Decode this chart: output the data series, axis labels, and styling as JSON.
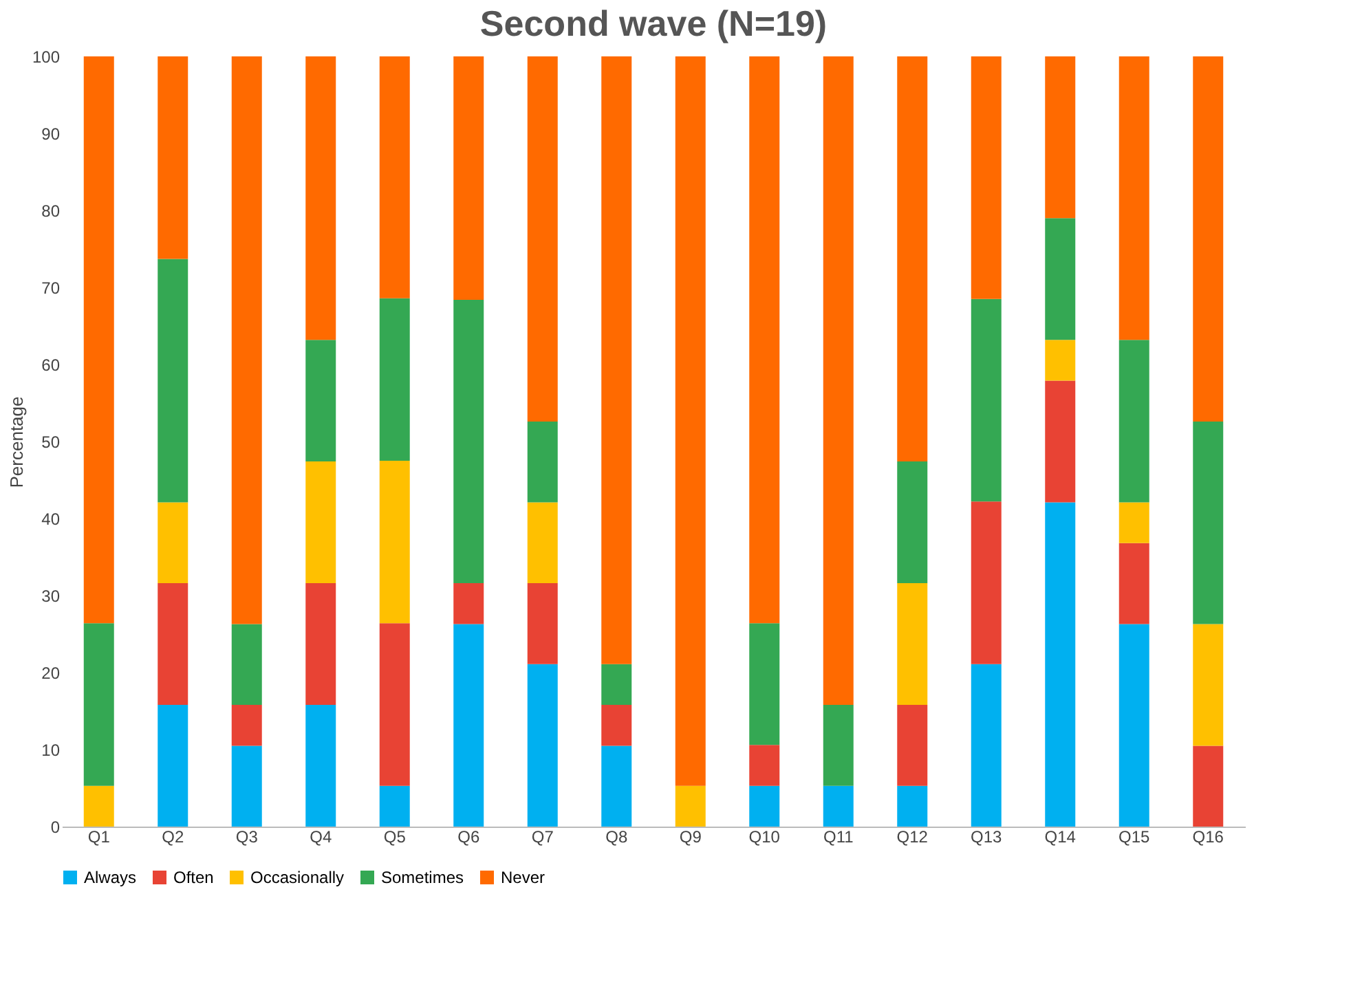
{
  "chart_data": {
    "type": "bar",
    "title": "Second wave (N=19)",
    "ylabel": "Percentage",
    "stacked": true,
    "legend": "bottom",
    "grid": false,
    "categories": [
      "Q1",
      "Q2",
      "Q3",
      "Q4",
      "Q5",
      "Q6",
      "Q7",
      "Q8",
      "Q9",
      "Q10",
      "Q11",
      "Q12",
      "Q13",
      "Q14",
      "Q15",
      "Q16"
    ],
    "ylim": [
      0,
      100
    ],
    "yticks": [
      0,
      10,
      20,
      30,
      40,
      50,
      60,
      70,
      80,
      90,
      100
    ],
    "series": [
      {
        "name": "Always",
        "color": "#00b0f0",
        "values": [
          0,
          15.8,
          10.5,
          15.8,
          5.3,
          26.3,
          21.1,
          10.5,
          0,
          5.3,
          5.3,
          5.3,
          21.1,
          42.1,
          26.3,
          0
        ]
      },
      {
        "name": "Often",
        "color": "#e84334",
        "values": [
          0,
          15.8,
          5.3,
          15.8,
          21.1,
          5.3,
          10.5,
          5.3,
          0,
          5.3,
          0,
          10.5,
          21.1,
          15.8,
          10.5,
          10.5
        ]
      },
      {
        "name": "Occasionally",
        "color": "#ffc000",
        "values": [
          5.3,
          10.5,
          0,
          15.8,
          21.1,
          0,
          10.5,
          0,
          5.3,
          0,
          0,
          15.8,
          0,
          5.3,
          5.3,
          15.8
        ]
      },
      {
        "name": "Sometimes",
        "color": "#34a853",
        "values": [
          21.1,
          31.6,
          10.5,
          15.8,
          21.1,
          36.8,
          10.5,
          5.3,
          0,
          15.8,
          10.5,
          15.8,
          26.3,
          15.8,
          21.1,
          26.3
        ]
      },
      {
        "name": "Never",
        "color": "#ff6a00",
        "values": [
          73.6,
          26.3,
          73.7,
          36.8,
          31.4,
          31.6,
          47.4,
          78.9,
          94.7,
          73.6,
          84.2,
          52.6,
          31.5,
          21.0,
          36.8,
          47.4
        ]
      }
    ]
  }
}
